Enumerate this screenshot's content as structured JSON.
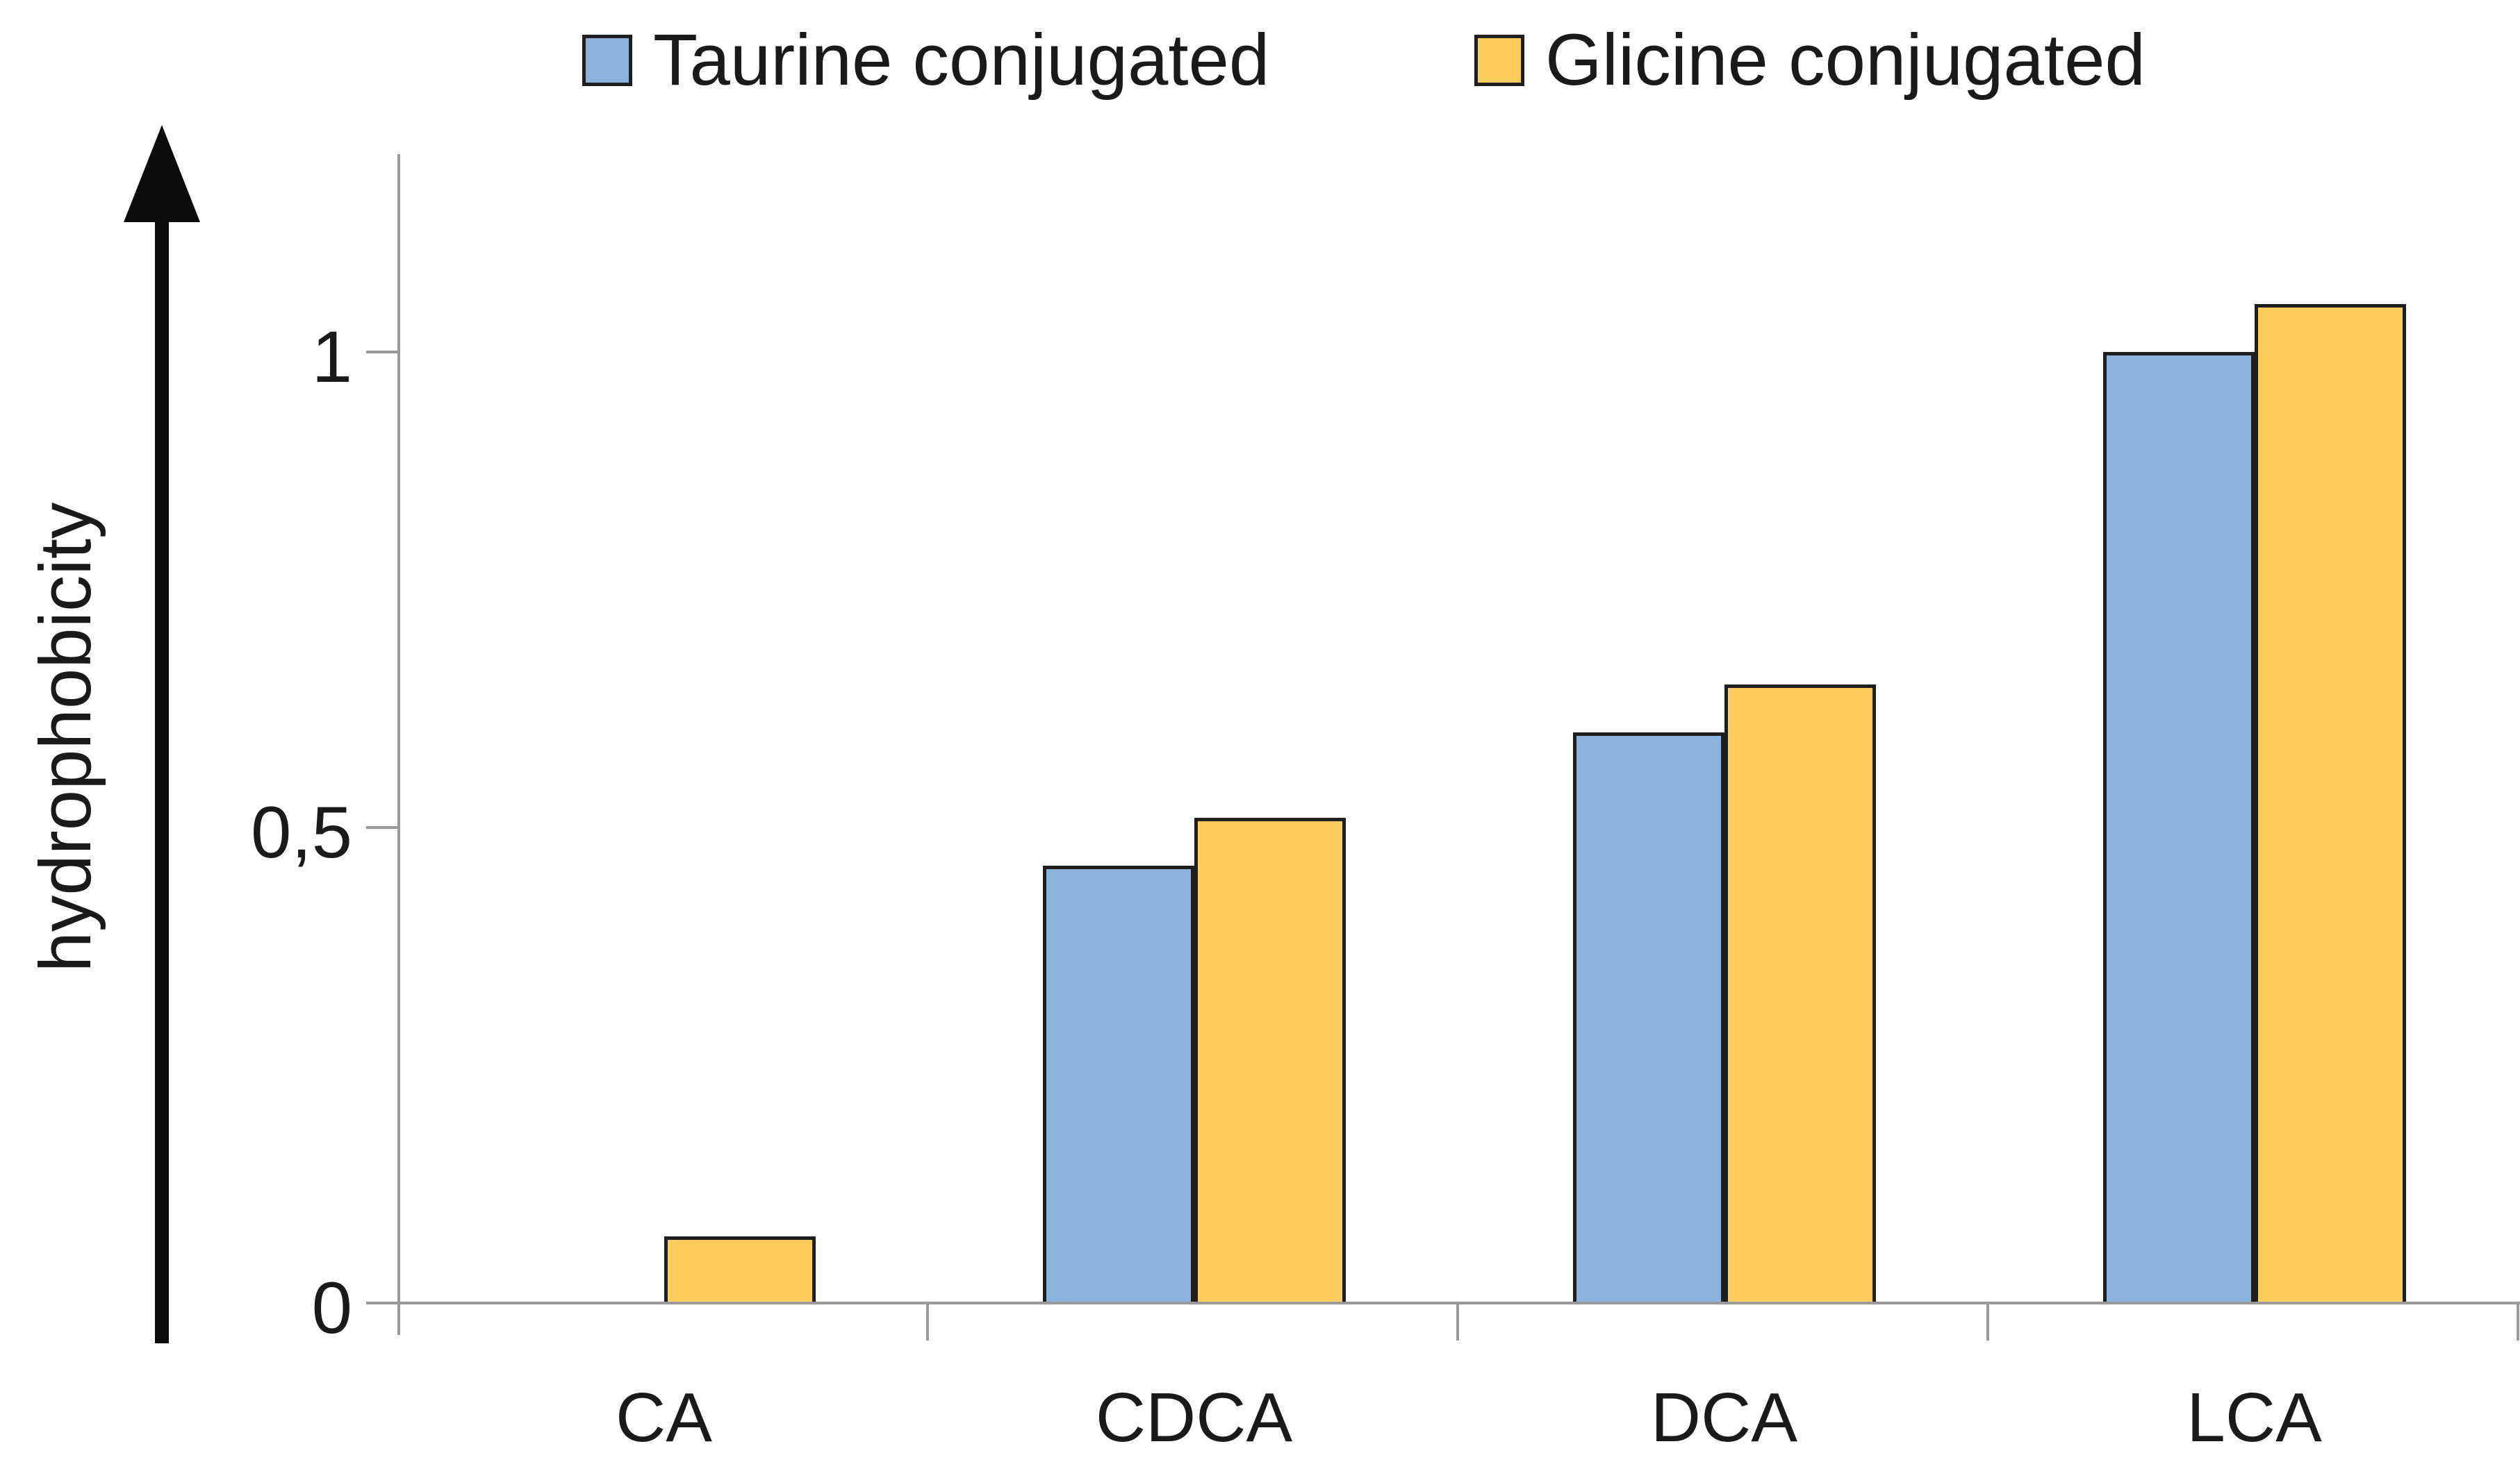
{
  "legend": {
    "position": "top",
    "items": [
      {
        "label": "Taurine conjugated",
        "color": "#8CB3DB"
      },
      {
        "label": "Glicine conjugated",
        "color": "#FFCD5E"
      }
    ]
  },
  "chart_data": {
    "type": "bar",
    "title": "",
    "categories": [
      "CA",
      "CDCA",
      "DCA",
      "LCA"
    ],
    "series": [
      {
        "name": "Taurine conjugated",
        "color": "#8CB3DB",
        "values": [
          0,
          0.46,
          0.6,
          1.0
        ]
      },
      {
        "name": "Glicine conjugated",
        "color": "#FFCD5E",
        "values": [
          0.07,
          0.51,
          0.65,
          1.05
        ]
      }
    ],
    "xlabel": "",
    "ylabel": "hydrophobicity",
    "ylim": [
      0,
      1.2
    ],
    "yticks": [
      {
        "label": "0",
        "value": 0
      },
      {
        "label": "0,5",
        "value": 0.5
      },
      {
        "label": "1",
        "value": 1
      }
    ],
    "decimal_separator": ",",
    "grid": false,
    "legend_position": "top",
    "bar_outline_color": "#1E1E1E",
    "axis_color": "#9A9A9A",
    "text_color": "#1A1A1A",
    "axis_arrow": true
  }
}
